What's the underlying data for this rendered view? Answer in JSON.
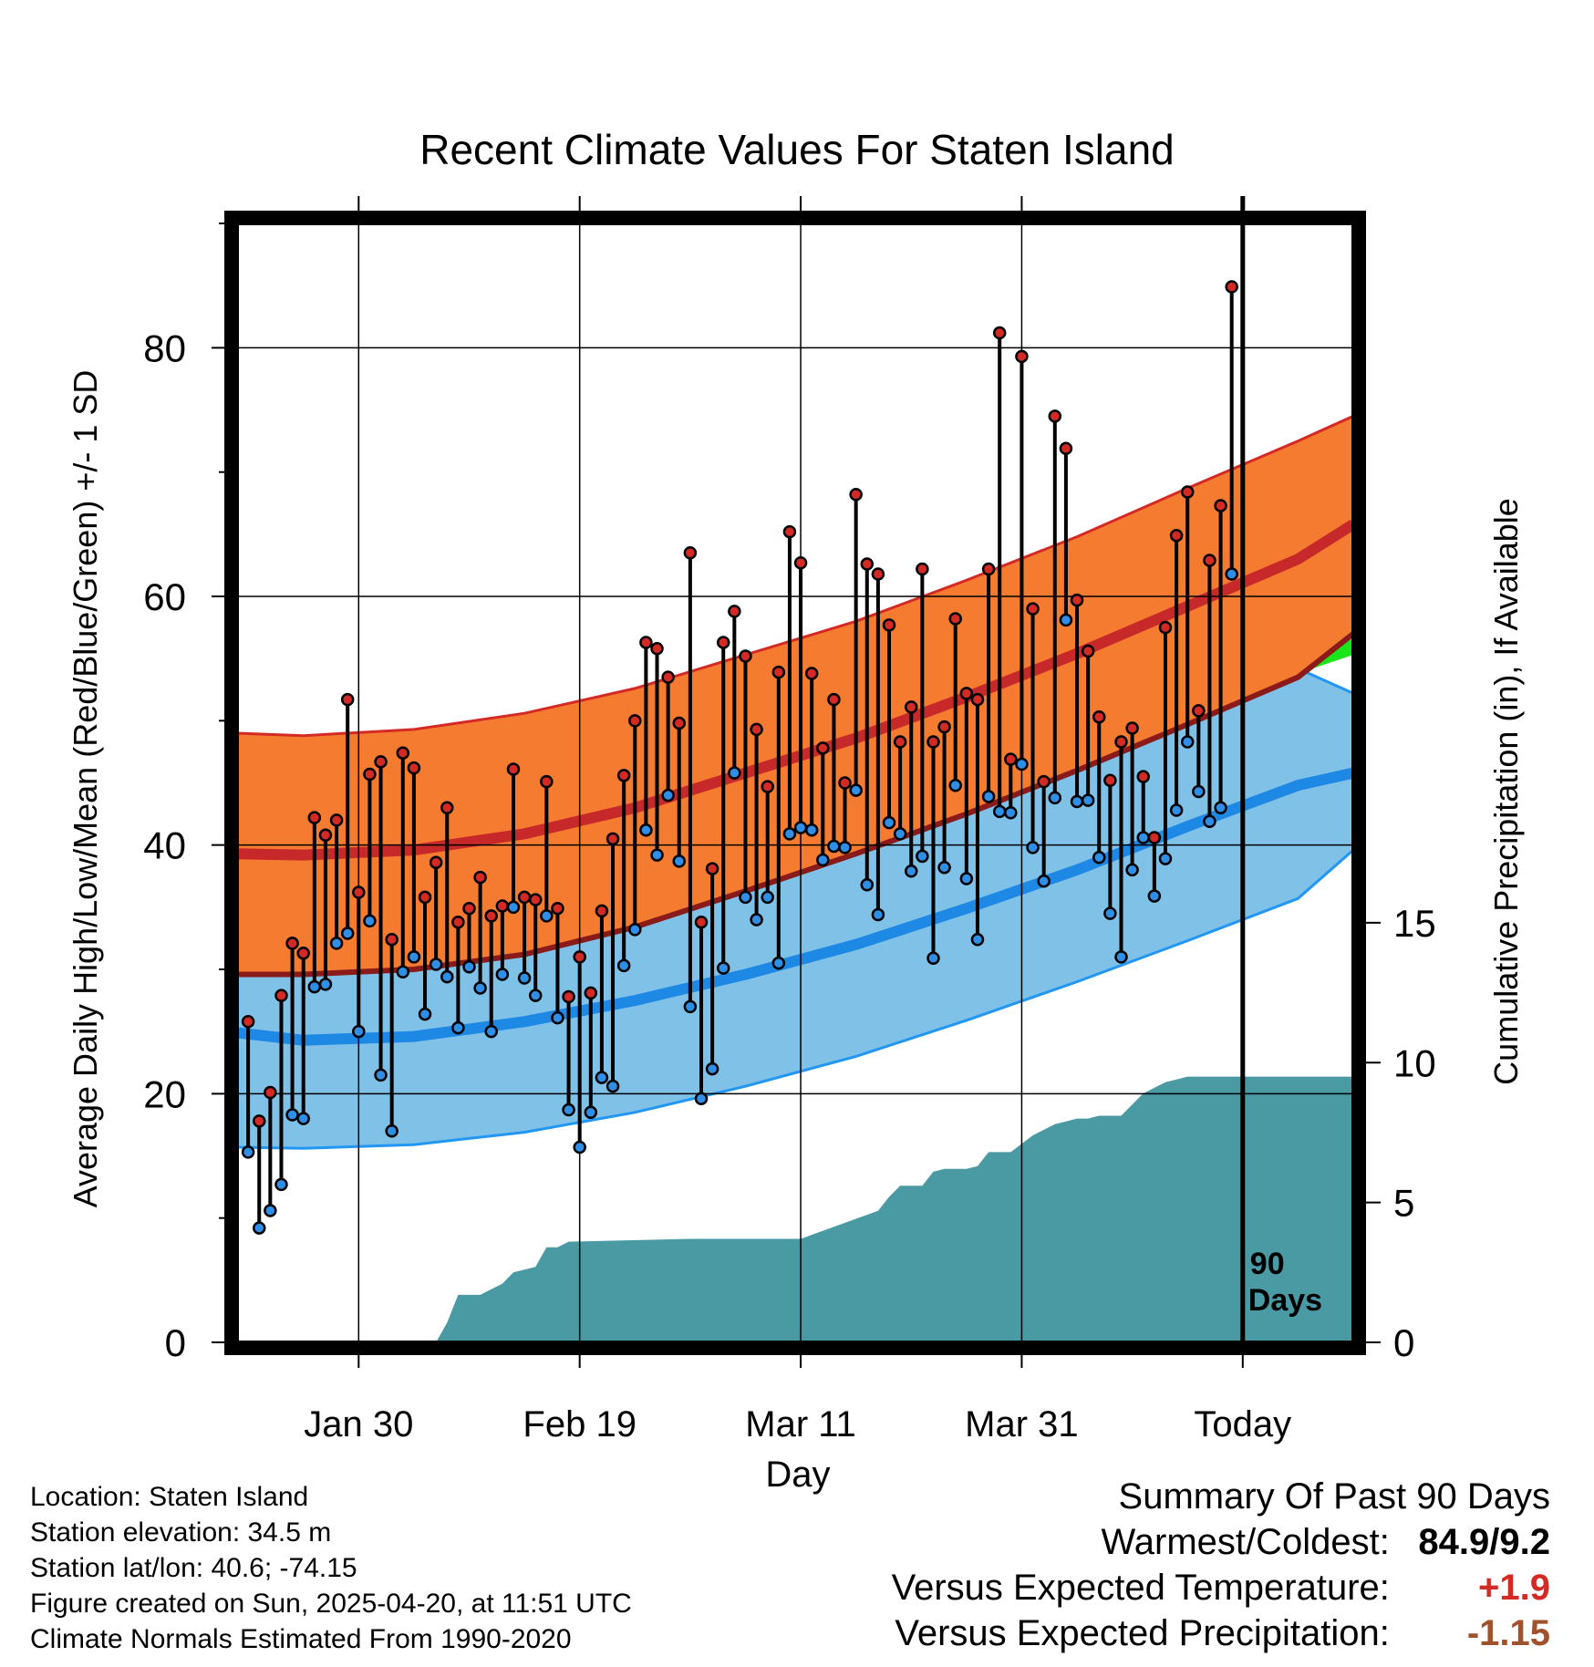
{
  "chart_data": {
    "type": "line",
    "title": "Recent Climate Values For Staten Island",
    "xlabel": "Day",
    "ylabel": "Average Daily High/Low/Mean (Red/Blue/Green) +/- 1 SD",
    "y2label": "Cumulative Precipitation (in), If Available",
    "x_tick_labels": [
      "Jan 30",
      "Feb 19",
      "Mar 11",
      "Mar 31",
      "Today"
    ],
    "x_tick_days": [
      10,
      30,
      50,
      70,
      90
    ],
    "xlim": [
      -1,
      100
    ],
    "ylim": [
      0,
      90
    ],
    "y_ticks": [
      0,
      20,
      40,
      60,
      80
    ],
    "y2_ticks": [
      0,
      5,
      10,
      15
    ],
    "y2lim": [
      0,
      40
    ],
    "today_marker": {
      "day": 90,
      "label_line1": "90",
      "label_line2": "Days"
    },
    "normals": {
      "days": [
        -1,
        5,
        15,
        25,
        35,
        45,
        55,
        65,
        75,
        85,
        95,
        100
      ],
      "high_mean": [
        39.3,
        39.2,
        39.6,
        40.9,
        43.0,
        45.8,
        48.6,
        51.9,
        55.4,
        59.2,
        63.0,
        65.8
      ],
      "high_upper": [
        49.0,
        48.8,
        49.3,
        50.6,
        52.6,
        55.3,
        58.0,
        61.3,
        64.8,
        68.7,
        72.5,
        74.5
      ],
      "high_lower": [
        29.6,
        29.6,
        30.0,
        31.2,
        33.4,
        36.3,
        39.3,
        42.5,
        46.0,
        49.7,
        53.5,
        57.0
      ],
      "mean": [
        32.3,
        32.2,
        32.6,
        33.7,
        35.7,
        38.1,
        40.8,
        43.9,
        47.2,
        50.9,
        54.5,
        56.0
      ],
      "low_mean": [
        24.9,
        24.3,
        24.6,
        25.8,
        27.5,
        29.6,
        32.0,
        34.9,
        38.0,
        41.5,
        44.8,
        45.8
      ],
      "low_upper": [
        34.0,
        33.4,
        33.8,
        35.0,
        36.7,
        38.9,
        41.3,
        44.2,
        47.3,
        50.8,
        54.2,
        52.2
      ],
      "low_lower": [
        15.7,
        15.6,
        15.9,
        16.9,
        18.5,
        20.6,
        23.0,
        25.9,
        29.0,
        32.3,
        35.7,
        39.6
      ]
    },
    "series": [
      {
        "name": "High",
        "color": "#d42a26",
        "values": [
          25.8,
          17.8,
          20.1,
          27.9,
          32.1,
          31.3,
          42.2,
          40.8,
          42.0,
          51.7,
          36.2,
          45.7,
          46.7,
          32.4,
          47.4,
          46.2,
          35.8,
          38.6,
          43.0,
          33.8,
          34.9,
          37.4,
          34.3,
          35.1,
          46.1,
          35.8,
          35.6,
          45.1,
          34.9,
          27.8,
          31.0,
          28.1,
          34.7,
          40.5,
          45.6,
          50.0,
          56.3,
          55.8,
          53.5,
          49.8,
          63.5,
          33.8,
          38.1,
          56.3,
          58.8,
          55.2,
          49.3,
          44.7,
          53.9,
          65.2,
          62.7,
          53.8,
          47.8,
          51.7,
          45.0,
          68.2,
          62.6,
          61.8,
          57.7,
          48.3,
          51.1,
          62.2,
          48.3,
          49.5,
          58.2,
          52.2,
          51.7,
          62.2,
          81.2,
          46.9,
          79.3,
          59.0,
          45.1,
          74.5,
          71.9,
          59.7,
          55.6,
          50.3,
          45.2,
          48.3,
          49.4,
          45.5,
          40.6,
          57.5,
          64.9,
          68.4,
          50.8,
          62.9,
          67.3,
          84.9
        ]
      },
      {
        "name": "Low",
        "color": "#2f8ee6",
        "values": [
          15.3,
          9.2,
          10.6,
          12.7,
          18.3,
          18.0,
          28.6,
          28.8,
          32.1,
          32.9,
          25.0,
          33.9,
          21.5,
          17.0,
          29.8,
          31.0,
          26.4,
          30.4,
          29.4,
          25.3,
          30.2,
          28.5,
          25.0,
          29.6,
          35.0,
          29.3,
          27.9,
          34.3,
          26.1,
          18.7,
          15.7,
          18.5,
          21.3,
          20.6,
          30.3,
          33.2,
          41.2,
          39.2,
          44.0,
          38.7,
          27.0,
          19.6,
          22.0,
          30.1,
          45.8,
          35.8,
          34.0,
          35.8,
          30.5,
          40.9,
          41.4,
          41.2,
          38.8,
          39.9,
          39.8,
          44.4,
          36.8,
          34.4,
          41.8,
          40.9,
          37.9,
          39.1,
          30.9,
          38.2,
          44.8,
          37.3,
          32.4,
          43.9,
          42.7,
          42.6,
          46.5,
          39.8,
          37.1,
          43.8,
          58.1,
          43.5,
          43.6,
          39.0,
          34.5,
          31.0,
          38.0,
          40.6,
          35.9,
          38.9,
          42.8,
          48.3,
          44.3,
          41.9,
          43.0,
          61.8
        ]
      },
      {
        "name": "Cumulative Precipitation",
        "color": "#4a9aa4",
        "days": [
          -1,
          17,
          18,
          19,
          21,
          22,
          23,
          24,
          25,
          26,
          27,
          28,
          29,
          40,
          42,
          43,
          50,
          57,
          58,
          59,
          60,
          61,
          62,
          63,
          64,
          65,
          66,
          67,
          68,
          69,
          70,
          71,
          72,
          73,
          74,
          75,
          76,
          77,
          78,
          79,
          80,
          81,
          82,
          83,
          84,
          85,
          100
        ],
        "values": [
          0,
          0,
          0.7,
          1.7,
          1.7,
          1.9,
          2.1,
          2.5,
          2.6,
          2.7,
          3.4,
          3.4,
          3.6,
          3.7,
          3.7,
          3.7,
          3.7,
          4.7,
          5.2,
          5.6,
          5.6,
          5.6,
          6.1,
          6.2,
          6.2,
          6.2,
          6.3,
          6.8,
          6.8,
          6.8,
          7.1,
          7.4,
          7.6,
          7.8,
          7.9,
          8.0,
          8.0,
          8.1,
          8.1,
          8.1,
          8.5,
          8.9,
          9.1,
          9.3,
          9.4,
          9.5,
          9.5
        ]
      }
    ]
  },
  "info": {
    "location": "Location: Staten Island",
    "elevation": "Station elevation: 34.5 m",
    "latlon": "Station lat/lon: 40.6; -74.15",
    "created": "Figure created on Sun, 2025-04-20, at 11:51 UTC",
    "normals": "Climate Normals Estimated From 1990-2020"
  },
  "summary": {
    "title": "Summary Of Past 90 Days",
    "warmest_label": "Warmest/Coldest:",
    "warmest_value": "84.9/9.2",
    "temp_label": "Versus Expected Temperature:",
    "temp_value": "+1.9",
    "temp_color": "#d42a26",
    "precip_label": "Versus Expected Precipitation:",
    "precip_value": "-1.15",
    "precip_color": "#a0522d"
  },
  "colors": {
    "high_band": "#f47b2f",
    "high_mean": "#c7282a",
    "low_band": "#80c1e8",
    "low_mean": "#1e88e5",
    "mean": "#19e619",
    "precip": "#4a9aa4"
  }
}
